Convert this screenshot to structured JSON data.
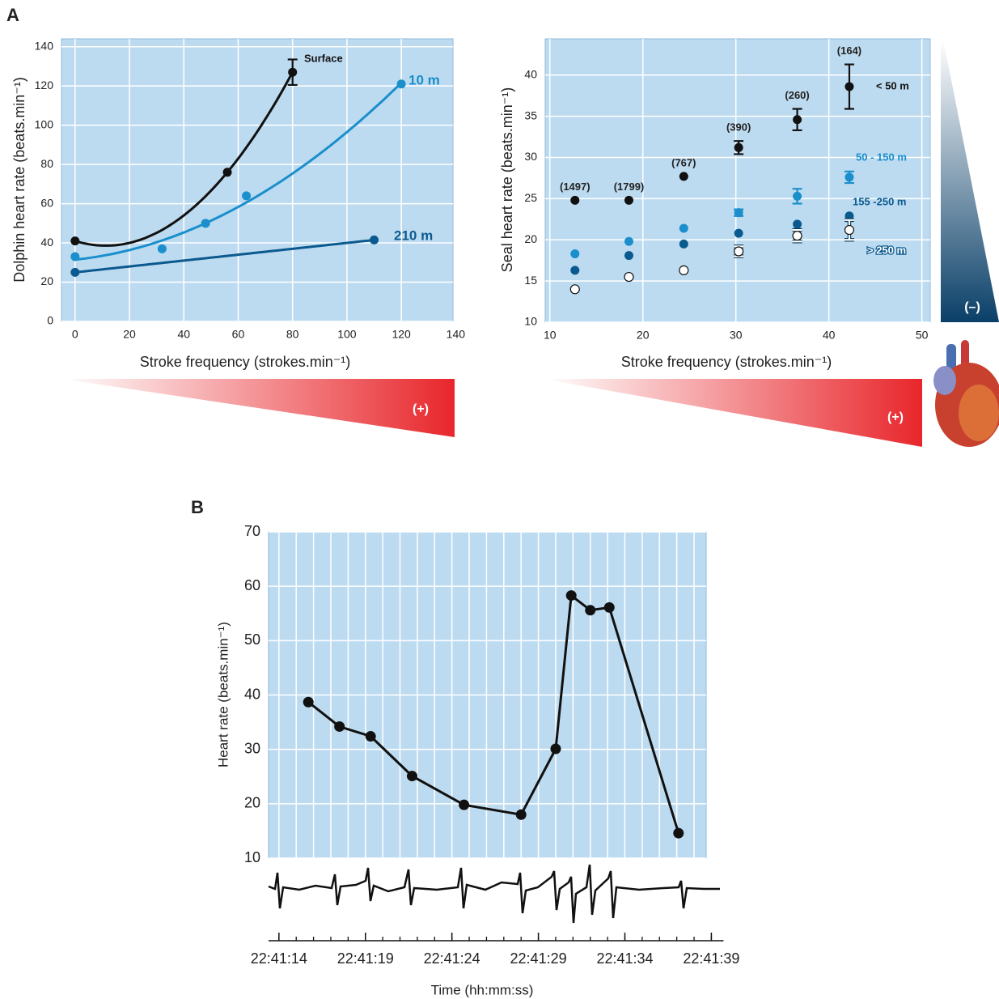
{
  "chart_data": [
    {
      "type": "line",
      "panel_label": "A",
      "xlabel": "Stroke frequency (strokes.min⁻¹)",
      "ylabel": "Dolphin heart rate (beats.min⁻¹)",
      "xlim": [
        -5,
        139
      ],
      "ylim": [
        0,
        144
      ],
      "xticks": [
        0,
        20,
        40,
        60,
        80,
        100,
        120,
        140
      ],
      "yticks": [
        0,
        20,
        40,
        60,
        80,
        100,
        120,
        140
      ],
      "grid": true,
      "series": [
        {
          "name": "Surface",
          "color": "#111111",
          "x": [
            0,
            56,
            80
          ],
          "values": [
            41,
            76,
            127
          ],
          "errors": [
            null,
            null,
            6.5
          ]
        },
        {
          "name": "10 m",
          "color": "#1a8fcc",
          "x": [
            0,
            32,
            48,
            63,
            120
          ],
          "values": [
            33,
            37,
            50,
            64,
            121
          ]
        },
        {
          "name": "210 m",
          "color": "#0b5a8f",
          "x": [
            0,
            110
          ],
          "values": [
            25,
            41.5
          ]
        }
      ],
      "gradient_labels": [
        "(+)"
      ]
    },
    {
      "type": "scatter",
      "xlabel": "Stroke frequency (strokes.min⁻¹)",
      "ylabel": "Seal heart rate (beats.min⁻¹)",
      "xlim": [
        9.5,
        50.9
      ],
      "ylim": [
        10,
        44.4
      ],
      "xticks": [
        10,
        20,
        30,
        40,
        50
      ],
      "yticks": [
        10,
        15,
        20,
        25,
        30,
        35,
        40
      ],
      "grid": true,
      "x": [
        12.7,
        18.5,
        24.4,
        30.3,
        36.6,
        42.2
      ],
      "annotations": [
        "(1497)",
        "(1799)",
        "(767)",
        "(390)",
        "(260)",
        "(164)"
      ],
      "series": [
        {
          "name": "< 50 m",
          "color": "#111111",
          "values": [
            24.8,
            24.8,
            27.7,
            31.2,
            34.6,
            38.6
          ],
          "errors": [
            null,
            null,
            null,
            0.8,
            1.3,
            2.7
          ]
        },
        {
          "name": "50 - 150 m",
          "color": "#1a8fcc",
          "values": [
            18.3,
            19.8,
            21.4,
            23.3,
            25.3,
            27.6
          ],
          "errors": [
            null,
            null,
            null,
            0.4,
            0.9,
            0.7
          ]
        },
        {
          "name": "155 -250 m",
          "color": "#0b5a8f",
          "values": [
            16.3,
            18.1,
            19.5,
            20.8,
            21.9,
            22.9
          ]
        },
        {
          "name": "> 250 m",
          "color": "#ffffff",
          "values": [
            14.0,
            15.5,
            16.3,
            18.6,
            20.5,
            21.2
          ],
          "errors": [
            null,
            null,
            null,
            0.6,
            0.7,
            1.2
          ]
        }
      ],
      "gradient_labels": [
        "(+)",
        "(–)"
      ]
    },
    {
      "type": "line",
      "panel_label": "B",
      "xlabel": "Time (hh:mm:ss)",
      "ylabel": "Heart rate (beats.min⁻¹)",
      "xlim": [
        81673.4,
        81698.7
      ],
      "ylim": [
        10,
        70
      ],
      "yticks": [
        10,
        20,
        30,
        40,
        50,
        60,
        70
      ],
      "grid": true,
      "xticks": [
        {
          "value": 81674,
          "label": "22:41:14"
        },
        {
          "value": 81679,
          "label": "22:41:19"
        },
        {
          "value": 81684,
          "label": "22:41:24"
        },
        {
          "value": 81689,
          "label": "22:41:29"
        },
        {
          "value": 81694,
          "label": "22:41:34"
        },
        {
          "value": 81699,
          "label": "22:41:39"
        }
      ],
      "xminorticks": [
        81674,
        81675,
        81676,
        81677,
        81678,
        81679,
        81680,
        81681,
        81682,
        81683,
        81684,
        81685,
        81686,
        81687,
        81688,
        81689,
        81690,
        81691,
        81692,
        81693,
        81694,
        81695,
        81696,
        81697,
        81698,
        81699
      ],
      "color": "#111111",
      "x": [
        81675.7,
        81677.5,
        81679.3,
        81681.7,
        81684.7,
        81688.0,
        81690.0,
        81690.9,
        81692.0,
        81693.1,
        81697.1
      ],
      "values": [
        38.7,
        34.2,
        32.4,
        25.1,
        19.8,
        18.0,
        30.1,
        58.3,
        55.6,
        56.1,
        14.6
      ]
    }
  ]
}
